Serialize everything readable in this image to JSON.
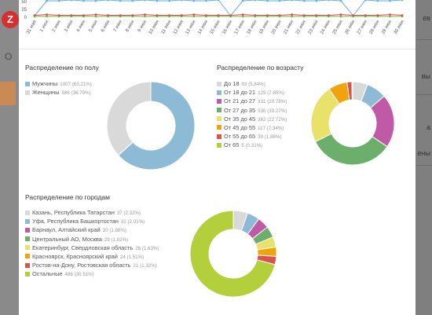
{
  "background": {
    "logo_letter": "Z",
    "panel_letter": "O",
    "right_labels": [
      "ев",
      "вы",
      "а",
      "ены"
    ]
  },
  "timeline": {
    "y_ticks": [
      "50",
      "25",
      "0"
    ],
    "dates": [
      "31 мая",
      "1 июн",
      "2 июн",
      "3 июн",
      "4 июн",
      "5 июн",
      "6 июн",
      "7 июн",
      "8 июн",
      "9 июн",
      "10 июн",
      "11 июн",
      "12 июн",
      "13 июн",
      "14 июн",
      "15 июн",
      "16 июн",
      "17 июн",
      "18 июн",
      "19 июн",
      "20 июн",
      "21 июн",
      "22 июн",
      "23 июн",
      "24 июн",
      "25 июн",
      "26 июн",
      "27 июн",
      "28 июн",
      "29 июн",
      "30 июн"
    ],
    "colors": {
      "blue": "#6ab0de",
      "red": "#d9534f",
      "green": "#7cb342"
    }
  },
  "gender": {
    "title": "Распределение по полу",
    "items": [
      {
        "label": "Мужчины",
        "count": "1007 (63.21%)",
        "value": 1007,
        "color": "#8dbbd6"
      },
      {
        "label": "Женщины",
        "count": "586 (36.79%)",
        "value": 586,
        "color": "#d9d9d9"
      }
    ]
  },
  "age": {
    "title": "Распределение по возрасту",
    "items": [
      {
        "label": "До 18",
        "count": "93 (5.84%)",
        "value": 93,
        "color": "#d9d9d9"
      },
      {
        "label": "От 18 до 21",
        "count": "125 (7.85%)",
        "value": 125,
        "color": "#8dbbd6"
      },
      {
        "label": "От 21 до 27",
        "count": "331 (20.78%)",
        "value": 331,
        "color": "#c05aa6"
      },
      {
        "label": "От 27 до 35",
        "count": "530 (33.27%)",
        "value": 530,
        "color": "#6cae6c"
      },
      {
        "label": "От 35 до 45",
        "count": "362 (22.72%)",
        "value": 362,
        "color": "#e8e16a"
      },
      {
        "label": "От 45 до 55",
        "count": "117 (7.34%)",
        "value": 117,
        "color": "#f0a30a"
      },
      {
        "label": "От 55 до 65",
        "count": "30 (1.88%)",
        "value": 30,
        "color": "#d9534f"
      },
      {
        "label": "От 65",
        "count": "5 (0.31%)",
        "value": 5,
        "color": "#b3cf3c"
      }
    ]
  },
  "cities": {
    "title": "Распределение по городам",
    "items": [
      {
        "label": "Казань, Республика Татарстан",
        "count": "37 (2.32%)",
        "value": 37,
        "color": "#d9d9d9"
      },
      {
        "label": "Уфа, Республика Башкортостан",
        "count": "32 (2.01%)",
        "value": 32,
        "color": "#8dbbd6"
      },
      {
        "label": "Барнаул, Алтайский край",
        "count": "30 (1.88%)",
        "value": 30,
        "color": "#c05aa6"
      },
      {
        "label": "Центральный АО, Москва",
        "count": "29 (1.82%)",
        "value": 29,
        "color": "#6cae6c"
      },
      {
        "label": "Екатеринбург, Свердловская область",
        "count": "26 (1.63%)",
        "value": 26,
        "color": "#e8e16a"
      },
      {
        "label": "Красноярск, Красноярский край",
        "count": "24 (1.51%)",
        "value": 24,
        "color": "#f0a30a"
      },
      {
        "label": "Ростов-на-Дону, Ростовская область",
        "count": "21 (1.32%)",
        "value": 21,
        "color": "#d9534f"
      },
      {
        "label": "Остальные",
        "count": "486 (30.51%)",
        "value": 486,
        "color": "#b3cf3c"
      }
    ]
  },
  "chart_data": [
    {
      "type": "pie",
      "title": "Распределение по полу",
      "categories": [
        "Мужчины",
        "Женщины"
      ],
      "values": [
        1007,
        586
      ],
      "legend": "left"
    },
    {
      "type": "pie",
      "title": "Распределение по возрасту",
      "categories": [
        "До 18",
        "От 18 до 21",
        "От 21 до 27",
        "От 27 до 35",
        "От 35 до 45",
        "От 45 до 55",
        "От 55 до 65",
        "От 65"
      ],
      "values": [
        93,
        125,
        331,
        530,
        362,
        117,
        30,
        5
      ],
      "legend": "left"
    },
    {
      "type": "pie",
      "title": "Распределение по городам",
      "categories": [
        "Казань, Республика Татарстан",
        "Уфа, Республика Башкортостан",
        "Барнаул, Алтайский край",
        "Центральный АО, Москва",
        "Екатеринбург, Свердловская область",
        "Красноярск, Красноярский край",
        "Ростов-на-Дону, Ростовская область",
        "Остальные"
      ],
      "values": [
        37,
        32,
        30,
        29,
        26,
        24,
        21,
        486
      ],
      "legend": "left"
    }
  ]
}
